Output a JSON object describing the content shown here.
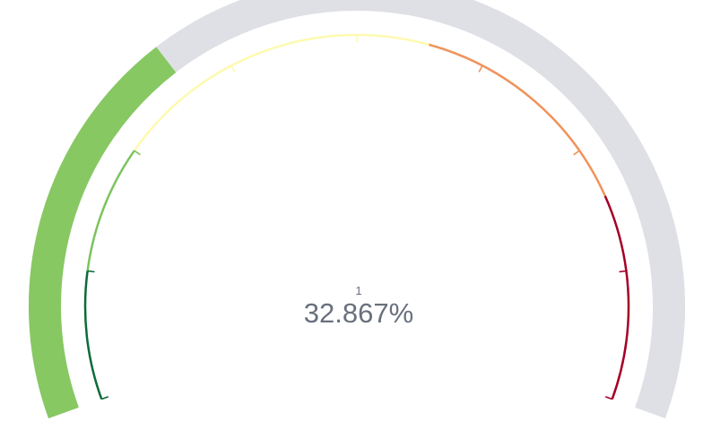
{
  "chart_data": {
    "type": "gauge",
    "label": "1",
    "value_text": "32.867%",
    "value": 32.867,
    "min": 0,
    "max": 100,
    "colors": {
      "track": "#dfe0e5",
      "fill": "#87c862",
      "value_text": "#69707d",
      "label_text": "#69707d"
    },
    "bands": [
      {
        "from": 0,
        "to": 12.5,
        "color": "#0b6b3a"
      },
      {
        "from": 12.5,
        "to": 25,
        "color": "#7cc35e"
      },
      {
        "from": 25,
        "to": 57,
        "color": "#fdfab0"
      },
      {
        "from": 57,
        "to": 80,
        "color": "#f0935a"
      },
      {
        "from": 80,
        "to": 100,
        "color": "#a50026"
      }
    ],
    "ticks": [
      0,
      12.5,
      25,
      37.5,
      50,
      62.5,
      75,
      87.5,
      100
    ]
  }
}
